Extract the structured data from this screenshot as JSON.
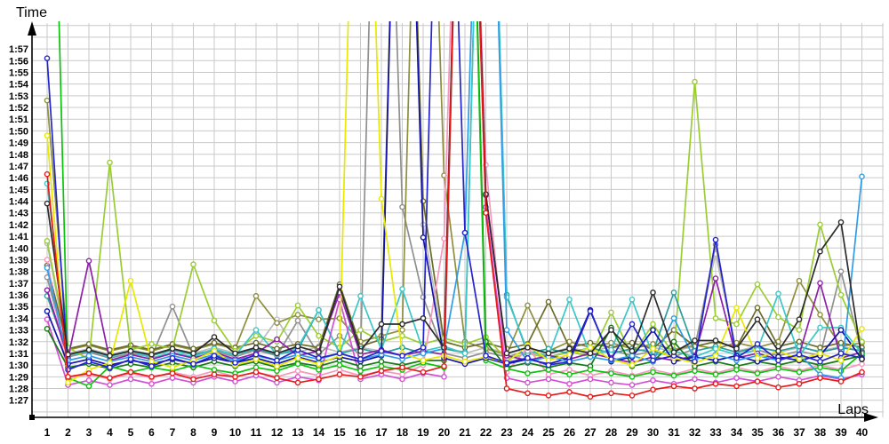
{
  "chart_data": {
    "type": "line",
    "title": "",
    "ylabel": "Time",
    "xlabel": "Laps",
    "grid": true,
    "legend": "none",
    "x": [
      1,
      2,
      3,
      4,
      5,
      6,
      7,
      8,
      9,
      10,
      11,
      12,
      13,
      14,
      15,
      16,
      17,
      18,
      19,
      20,
      21,
      22,
      23,
      24,
      25,
      26,
      27,
      28,
      29,
      30,
      31,
      32,
      33,
      34,
      35,
      36,
      37,
      38,
      39,
      40
    ],
    "y_tick_labels": [
      "1:27",
      "1:28",
      "1:29",
      "1:30",
      "1:31",
      "1:32",
      "1:33",
      "1:34",
      "1:35",
      "1:36",
      "1:37",
      "1:38",
      "1:39",
      "1:40",
      "1:41",
      "1:42",
      "1:43",
      "1:44",
      "1:45",
      "1:46",
      "1:47",
      "1:48",
      "1:49",
      "1:50",
      "1:51",
      "1:52",
      "1:53",
      "1:54",
      "1:55",
      "1:56",
      "1:57"
    ],
    "y_min_seconds": 87,
    "y_max_seconds": 117,
    "offscale_clip_value": 160,
    "grid_color": "#c9c9c9",
    "axis_color": "#000000",
    "series": [
      {
        "name": "silver",
        "color": "#bcbcbc",
        "values": [
          100.4,
          91.0,
          91.4,
          90.9,
          91.3,
          90.9,
          91.4,
          91.0,
          91.5,
          91.0,
          91.4,
          93.9,
          91.1,
          91.6,
          91.1,
          91.5,
          91.2,
          160,
          102.0,
          91.4,
          91.0,
          91.5,
          91.0,
          91.4,
          91.0,
          91.5,
          91.1,
          91.6,
          91.1,
          91.5,
          91.2,
          91.6,
          99.5,
          91.2,
          91.6,
          91.1,
          91.5,
          91.2,
          91.6,
          91.2
        ]
      },
      {
        "name": "gray",
        "color": "#909090",
        "values": [
          97.5,
          90.7,
          91.1,
          90.6,
          91.0,
          90.7,
          95.0,
          90.8,
          91.2,
          90.7,
          91.3,
          90.8,
          93.8,
          90.9,
          92.5,
          90.8,
          160,
          103.5,
          95.8,
          91.0,
          90.6,
          91.1,
          90.7,
          91.2,
          90.7,
          91.1,
          90.8,
          91.3,
          90.8,
          91.2,
          90.7,
          91.4,
          100.3,
          90.9,
          91.3,
          90.8,
          91.2,
          90.8,
          98.0,
          91.0
        ]
      },
      {
        "name": "khaki",
        "color": "#8f8f3c",
        "values": [
          112.6,
          91.3,
          91.7,
          91.2,
          91.6,
          91.2,
          91.7,
          91.3,
          91.8,
          91.4,
          95.9,
          93.6,
          94.3,
          93.9,
          94.0,
          92.0,
          92.5,
          93.0,
          160,
          106.2,
          92.0,
          91.4,
          90.9,
          95.1,
          91.2,
          92.0,
          91.5,
          91.9,
          91.4,
          91.8,
          91.3,
          91.7,
          91.4,
          91.9,
          91.5,
          92.0,
          97.2,
          94.3,
          91.6,
          91.9
        ]
      },
      {
        "name": "olive",
        "color": "#6b6b2a",
        "values": [
          98.5,
          91.4,
          91.8,
          91.3,
          91.7,
          91.3,
          91.8,
          91.4,
          91.9,
          91.5,
          91.9,
          91.4,
          91.8,
          91.5,
          96.9,
          91.6,
          92.2,
          160,
          104.0,
          92.0,
          91.5,
          91.9,
          91.4,
          91.8,
          95.4,
          91.5,
          91.9,
          91.5,
          91.9,
          91.4,
          93.0,
          91.6,
          92.0,
          91.5,
          94.9,
          91.6,
          92.0,
          91.5,
          91.9,
          91.5
        ]
      },
      {
        "name": "lightgreen",
        "color": "#9acd32",
        "values": [
          100.6,
          91.5,
          90.5,
          107.3,
          91.3,
          91.8,
          91.4,
          98.6,
          93.8,
          91.2,
          92.5,
          92.0,
          95.1,
          92.5,
          91.5,
          93.0,
          92.0,
          92.5,
          91.8,
          92.3,
          91.8,
          92.4,
          90.5,
          91.0,
          90.6,
          91.2,
          90.7,
          94.5,
          90.8,
          93.5,
          90.9,
          114.2,
          94.0,
          93.5,
          96.9,
          94.1,
          93.0,
          102.0,
          96.0,
          92.0
        ]
      },
      {
        "name": "teal",
        "color": "#2a9d9d",
        "values": [
          95.9,
          90.9,
          91.2,
          90.8,
          91.2,
          90.8,
          91.3,
          90.9,
          91.3,
          90.9,
          91.4,
          90.9,
          91.3,
          94.7,
          91.0,
          91.4,
          91.0,
          91.5,
          91.0,
          91.4,
          91.1,
          160,
          96.0,
          91.0,
          91.4,
          91.0,
          91.5,
          91.0,
          91.4,
          91.1,
          96.2,
          91.2,
          91.6,
          91.1,
          91.5,
          91.2,
          91.6,
          91.1,
          91.5,
          91.2
        ]
      },
      {
        "name": "cyan",
        "color": "#3cc7c7",
        "values": [
          105.5,
          90.8,
          91.3,
          90.7,
          91.2,
          90.6,
          91.1,
          90.7,
          91.4,
          90.8,
          93.0,
          90.9,
          91.5,
          94.7,
          91.0,
          95.9,
          91.3,
          96.5,
          91.2,
          91.6,
          91.0,
          160,
          95.8,
          91.2,
          90.8,
          95.6,
          90.9,
          91.3,
          95.6,
          90.8,
          91.2,
          90.7,
          91.4,
          90.9,
          91.3,
          96.1,
          90.8,
          93.2,
          93.2,
          91.0
        ]
      },
      {
        "name": "pink",
        "color": "#f897bd",
        "values": [
          99.0,
          88.9,
          89.2,
          88.8,
          89.3,
          88.9,
          89.4,
          89.0,
          89.5,
          89.0,
          89.4,
          89.0,
          89.5,
          89.1,
          89.6,
          89.1,
          89.5,
          89.2,
          90.0,
          100.8,
          160,
          107.1,
          89.4,
          91.5,
          89.2,
          89.6,
          89.1,
          89.5,
          89.1,
          89.6,
          89.2,
          89.7,
          89.3,
          89.8,
          89.4,
          89.9,
          89.5,
          90.0,
          89.6,
          90.1
        ]
      },
      {
        "name": "magenta",
        "color": "#d44fd4",
        "values": [
          93.9,
          88.3,
          88.7,
          88.3,
          88.8,
          88.4,
          88.9,
          88.5,
          89.0,
          88.6,
          89.1,
          88.5,
          89.0,
          88.7,
          95.6,
          88.8,
          89.2,
          88.8,
          89.3,
          89.0,
          160,
          103.5,
          88.9,
          88.5,
          88.8,
          88.4,
          88.8,
          88.5,
          88.3,
          88.7,
          88.4,
          88.8,
          88.5,
          88.9,
          88.6,
          89.0,
          88.7,
          89.1,
          88.8,
          89.2
        ]
      },
      {
        "name": "purple",
        "color": "#8d1fa8",
        "values": [
          96.4,
          90.6,
          98.9,
          90.4,
          90.9,
          90.5,
          91.0,
          90.6,
          91.1,
          90.5,
          91.0,
          92.2,
          90.8,
          91.2,
          96.2,
          90.9,
          91.3,
          90.8,
          91.2,
          90.9,
          160,
          104.5,
          90.8,
          90.4,
          90.8,
          90.5,
          91.0,
          90.6,
          90.2,
          90.7,
          90.4,
          90.8,
          97.4,
          90.6,
          91.0,
          90.5,
          90.9,
          97.0,
          90.6,
          91.1
        ]
      },
      {
        "name": "darkgreen",
        "color": "#157a15",
        "values": [
          93.1,
          89.8,
          90.1,
          89.7,
          90.1,
          89.8,
          90.2,
          89.8,
          90.3,
          89.9,
          90.3,
          89.8,
          90.2,
          89.9,
          90.4,
          89.9,
          90.3,
          90.0,
          90.4,
          90.4,
          160,
          92.0,
          89.8,
          90.2,
          89.8,
          90.2,
          89.9,
          93.2,
          89.9,
          90.3,
          92.0,
          89.9,
          90.3,
          89.9,
          90.3,
          90.0,
          90.4,
          90.0,
          90.4,
          90.8
        ]
      },
      {
        "name": "green",
        "color": "#0cc20c",
        "values": [
          160,
          88.9,
          88.2,
          89.9,
          89.4,
          89.8,
          89.5,
          90.0,
          89.6,
          89.3,
          89.8,
          89.5,
          90.1,
          89.6,
          90.0,
          89.5,
          89.9,
          89.6,
          90.2,
          89.8,
          160,
          90.4,
          89.7,
          89.3,
          89.6,
          89.2,
          89.6,
          89.3,
          89.0,
          89.4,
          89.1,
          89.5,
          89.2,
          89.6,
          89.3,
          89.7,
          89.4,
          89.8,
          89.5,
          91.0
        ]
      },
      {
        "name": "navy",
        "color": "#1212a8",
        "values": [
          94.6,
          90.1,
          90.5,
          90.0,
          90.4,
          90.1,
          90.5,
          90.1,
          90.6,
          90.2,
          90.6,
          90.1,
          90.7,
          90.2,
          90.7,
          90.3,
          90.8,
          160,
          100.9,
          90.6,
          90.1,
          90.6,
          90.1,
          90.5,
          90.1,
          90.6,
          94.7,
          90.3,
          90.7,
          93.0,
          90.3,
          90.7,
          90.4,
          90.8,
          90.3,
          90.7,
          90.4,
          90.8,
          93.0,
          90.5
        ]
      },
      {
        "name": "dodgerblue",
        "color": "#2f9ce8",
        "values": [
          98.3,
          90.4,
          90.8,
          90.3,
          90.7,
          90.3,
          90.8,
          90.4,
          90.9,
          90.4,
          90.8,
          90.4,
          90.9,
          90.5,
          91.0,
          90.5,
          90.9,
          90.5,
          91.0,
          91.4,
          101.3,
          160,
          93.0,
          90.3,
          90.7,
          90.3,
          90.7,
          90.4,
          90.8,
          90.3,
          94.0,
          90.5,
          90.9,
          90.4,
          90.8,
          90.4,
          90.9,
          89.2,
          88.9,
          106.1
        ]
      },
      {
        "name": "yellow",
        "color": "#e8e800",
        "values": [
          109.6,
          88.5,
          89.6,
          90.2,
          97.2,
          90.3,
          89.8,
          90.4,
          91.2,
          90.0,
          90.5,
          89.9,
          90.6,
          90.1,
          90.8,
          160,
          104.2,
          91.0,
          90.4,
          90.8,
          90.3,
          90.7,
          90.2,
          91.7,
          90.4,
          90.9,
          91.5,
          90.5,
          90.0,
          91.4,
          90.6,
          90.2,
          90.8,
          94.9,
          90.6,
          91.2,
          90.5,
          91.0,
          90.4,
          93.1
        ]
      },
      {
        "name": "blue",
        "color": "#2424cc",
        "values": [
          116.2,
          89.6,
          90.3,
          89.8,
          90.5,
          89.9,
          90.6,
          90.1,
          90.8,
          90.2,
          90.9,
          90.4,
          91.3,
          90.6,
          91.0,
          90.5,
          91.2,
          90.8,
          91.5,
          160,
          101.3,
          90.8,
          90.2,
          90.6,
          90.0,
          90.3,
          94.6,
          90.5,
          93.5,
          90.4,
          90.8,
          90.3,
          100.7,
          90.6,
          91.8,
          90.4,
          90.9,
          90.3,
          91.0,
          90.6
        ]
      },
      {
        "name": "black",
        "color": "#2b2b2b",
        "values": [
          103.8,
          90.9,
          91.3,
          90.8,
          91.2,
          90.9,
          91.4,
          91.0,
          92.4,
          91.0,
          91.5,
          91.0,
          91.6,
          91.1,
          96.7,
          91.2,
          93.5,
          93.5,
          94.0,
          91.5,
          160,
          104.6,
          91.0,
          91.5,
          91.0,
          91.4,
          91.0,
          93.0,
          91.2,
          96.2,
          91.1,
          92.1,
          92.1,
          91.4,
          93.9,
          91.2,
          93.9,
          99.7,
          102.2,
          90.5
        ]
      },
      {
        "name": "red",
        "color": "#e81a1a",
        "values": [
          106.3,
          89.0,
          89.3,
          88.9,
          89.4,
          89.0,
          89.3,
          88.8,
          89.2,
          89.0,
          89.4,
          88.9,
          88.5,
          88.8,
          89.2,
          89.0,
          89.5,
          89.8,
          89.4,
          89.9,
          160,
          103.0,
          88.0,
          87.6,
          87.4,
          87.7,
          87.3,
          87.6,
          87.4,
          87.9,
          88.2,
          88.0,
          88.4,
          88.2,
          88.6,
          88.1,
          88.4,
          88.9,
          88.6,
          89.4
        ]
      }
    ]
  }
}
